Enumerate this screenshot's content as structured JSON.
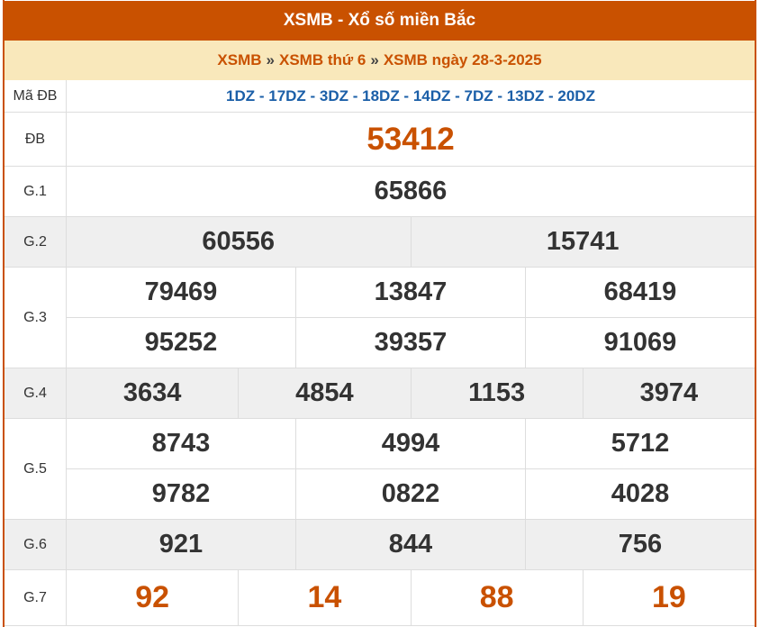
{
  "header": {
    "title": "XSMB - Xổ số miền Bắc"
  },
  "breadcrumb": {
    "items": [
      "XSMB",
      "XSMB thứ 6",
      "XSMB ngày 28-3-2025"
    ],
    "separator": "»"
  },
  "colors": {
    "accent": "#c95100",
    "breadcrumb_bg": "#f9e8bb",
    "code": "#1b5fa8"
  },
  "results": {
    "ma_db": {
      "label": "Mã ĐB",
      "value": "1DZ - 17DZ - 3DZ - 18DZ - 14DZ - 7DZ - 13DZ - 20DZ"
    },
    "db": {
      "label": "ĐB",
      "values": [
        "53412"
      ]
    },
    "g1": {
      "label": "G.1",
      "values": [
        "65866"
      ]
    },
    "g2": {
      "label": "G.2",
      "values": [
        "60556",
        "15741"
      ]
    },
    "g3": {
      "label": "G.3",
      "values": [
        "79469",
        "13847",
        "68419",
        "95252",
        "39357",
        "91069"
      ]
    },
    "g4": {
      "label": "G.4",
      "values": [
        "3634",
        "4854",
        "1153",
        "3974"
      ]
    },
    "g5": {
      "label": "G.5",
      "values": [
        "8743",
        "4994",
        "5712",
        "9782",
        "0822",
        "4028"
      ]
    },
    "g6": {
      "label": "G.6",
      "values": [
        "921",
        "844",
        "756"
      ]
    },
    "g7": {
      "label": "G.7",
      "values": [
        "92",
        "14",
        "88",
        "19"
      ]
    }
  }
}
